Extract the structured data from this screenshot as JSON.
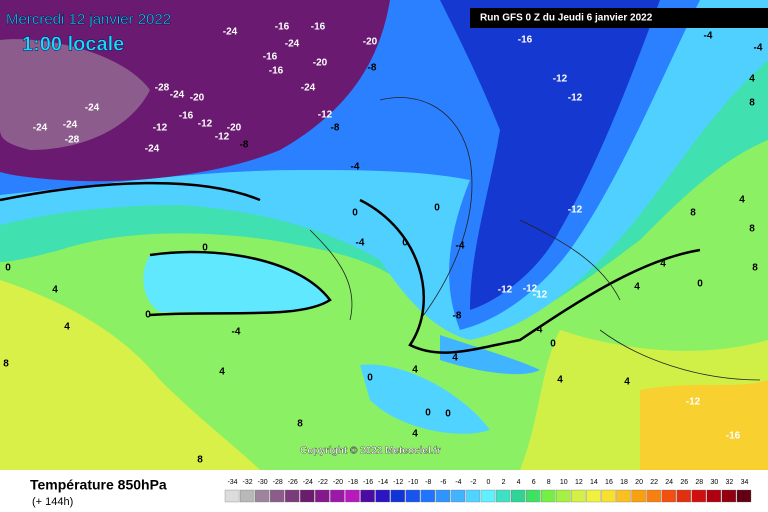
{
  "header": {
    "date": "Mercredi 12 janvier 2022",
    "time": "1:00 locale",
    "run": "Run GFS 0 Z du Jeudi 6 janvier 2022"
  },
  "copyright": "Copyright © 2022 Meteociel.fr",
  "footer": {
    "title": "Température 850hPa",
    "lead": "(+ 144h)"
  },
  "contour_labels": [
    -24,
    -16,
    -16,
    -24,
    -16,
    -20,
    -16,
    -28,
    -24,
    -20,
    -24,
    -24,
    -24,
    -28,
    -24,
    -12,
    -16,
    -12,
    -12,
    -20,
    -8,
    -12,
    -8,
    -24,
    -20,
    -8,
    -16,
    -12,
    -12,
    -12,
    -4,
    0,
    -4,
    0,
    0,
    -4,
    0,
    0,
    -12,
    -12,
    -12,
    -8,
    -4,
    0,
    4,
    4,
    0,
    0,
    0,
    4,
    -4,
    4,
    4,
    0,
    8,
    4,
    8,
    8,
    4,
    4,
    4,
    8,
    4,
    0,
    8,
    -12,
    -16,
    4,
    -4,
    -4,
    4,
    8,
    4,
    8
  ],
  "scale": {
    "ticks": [
      -34,
      -32,
      -30,
      -28,
      -26,
      -24,
      -22,
      -20,
      -18,
      -16,
      -14,
      -12,
      -10,
      -8,
      -6,
      -4,
      -2,
      0,
      2,
      4,
      6,
      8,
      10,
      12,
      14,
      16,
      18,
      20,
      22,
      24,
      26,
      28,
      30,
      32,
      34
    ],
    "colors": [
      "#dcdcdc",
      "#b8b8b8",
      "#9c849c",
      "#8c5c8c",
      "#7c3c7c",
      "#6c1c6c",
      "#84188c",
      "#9c18a8",
      "#b818c0",
      "#4c0aa4",
      "#2c14c4",
      "#1034d8",
      "#1a54f0",
      "#2074ff",
      "#3094ff",
      "#40b4ff",
      "#50d4ff",
      "#60f0ff",
      "#40e0c4",
      "#30d494",
      "#40e064",
      "#74f044",
      "#a4f044",
      "#d4f044",
      "#f0f040",
      "#f8e030",
      "#f8c020",
      "#f8a010",
      "#f88010",
      "#f05010",
      "#e03010",
      "#d01010",
      "#b00010",
      "#900010",
      "#600010"
    ]
  }
}
